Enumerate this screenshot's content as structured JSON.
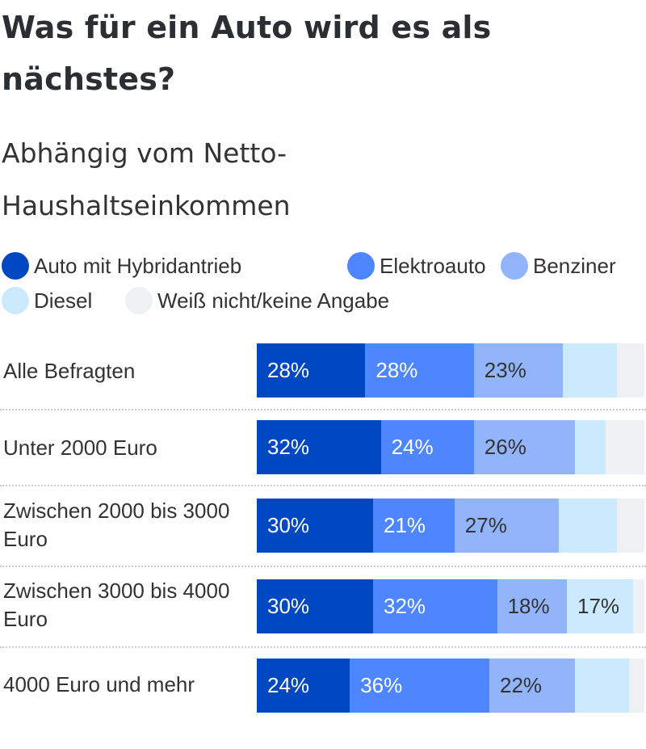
{
  "chart_data": {
    "type": "bar",
    "orientation": "horizontal",
    "stacked": true,
    "title": "Was für ein Auto wird es als nächstes?",
    "subtitle": "Abhängig vom Netto-Haushaltseinkommen",
    "legend_position": "top",
    "grid": false,
    "xlim": [
      0,
      100
    ],
    "categories": [
      "Alle Befragten",
      "Unter 2000 Euro",
      "Zwischen 2000 bis 3000 Euro",
      "Zwischen 3000 bis 4000 Euro",
      "4000 Euro und mehr"
    ],
    "series": [
      {
        "name": "Auto mit Hybridantrieb",
        "color": "#0047c2",
        "text_color": "#ffffff",
        "values": [
          28,
          32,
          30,
          30,
          24
        ],
        "labels": [
          "28%",
          "32%",
          "30%",
          "30%",
          "24%"
        ]
      },
      {
        "name": "Elektroauto",
        "color": "#4d86ff",
        "text_color": "#ffffff",
        "values": [
          28,
          24,
          21,
          32,
          36
        ],
        "labels": [
          "28%",
          "24%",
          "21%",
          "32%",
          "36%"
        ]
      },
      {
        "name": "Benziner",
        "color": "#91b4fb",
        "text_color": "#333333",
        "values": [
          23,
          26,
          27,
          18,
          22
        ],
        "labels": [
          "23%",
          "26%",
          "27%",
          "18%",
          "22%"
        ]
      },
      {
        "name": "Diesel",
        "color": "#cbeafd",
        "text_color": "#333333",
        "values": [
          14,
          8,
          15,
          17,
          14
        ],
        "labels": [
          "",
          "",
          "",
          "17%",
          ""
        ]
      },
      {
        "name": "Weiß nicht/keine Angabe",
        "color": "#eef1f3",
        "text_color": "#333333",
        "values": [
          7,
          10,
          7,
          3,
          4
        ],
        "labels": [
          "",
          "",
          "",
          "",
          ""
        ]
      }
    ]
  }
}
